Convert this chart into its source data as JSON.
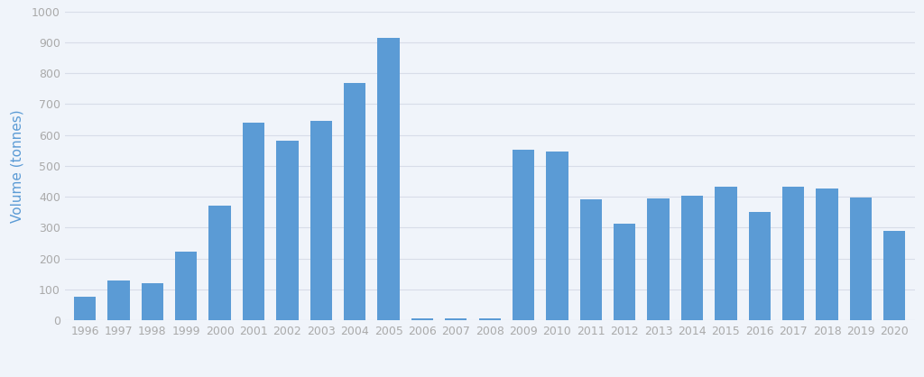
{
  "years": [
    1996,
    1997,
    1998,
    1999,
    2000,
    2001,
    2002,
    2003,
    2004,
    2005,
    2006,
    2007,
    2008,
    2009,
    2010,
    2011,
    2012,
    2013,
    2014,
    2015,
    2016,
    2017,
    2018,
    2019,
    2020
  ],
  "values": [
    76,
    130,
    120,
    222,
    370,
    640,
    582,
    645,
    768,
    915,
    8,
    8,
    8,
    553,
    547,
    393,
    312,
    396,
    403,
    432,
    352,
    432,
    428,
    398,
    291
  ],
  "bar_color": "#5B9BD5",
  "ylabel": "Volume (tonnes)",
  "ylim": [
    0,
    1000
  ],
  "yticks": [
    0,
    100,
    200,
    300,
    400,
    500,
    600,
    700,
    800,
    900,
    1000
  ],
  "background_color": "#f0f4fa",
  "grid_color": "#d8dde8",
  "text_color": "#5B9BD5",
  "tick_color": "#aaaaaa",
  "ylabel_fontsize": 11,
  "tick_fontsize": 9
}
